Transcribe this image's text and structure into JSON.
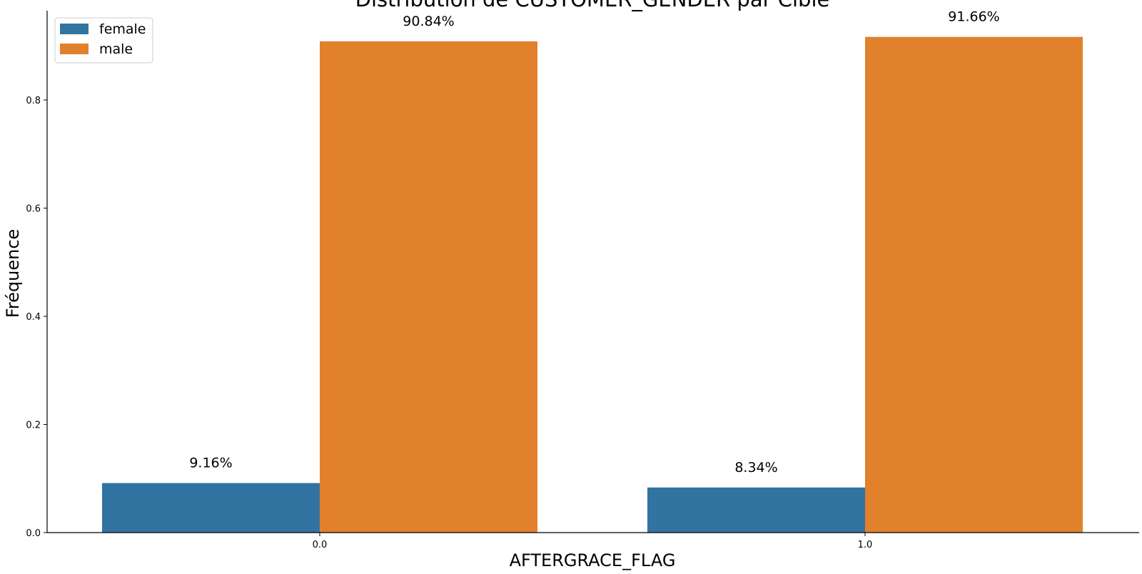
{
  "chart_data": {
    "type": "bar",
    "title": "Distribution de  CUSTOMER_GENDER  par  Cible",
    "xlabel": "AFTERGRACE_FLAG",
    "ylabel": "Fréquence",
    "categories": [
      "0.0",
      "1.0"
    ],
    "series": [
      {
        "name": "female",
        "color": "#3274a1",
        "values": [
          0.0916,
          0.0834
        ],
        "labels": [
          "9.16%",
          "8.34%"
        ]
      },
      {
        "name": "male",
        "color": "#e1812c",
        "values": [
          0.9084,
          0.9166
        ],
        "labels": [
          "90.84%",
          "91.66%"
        ]
      }
    ],
    "ylim": [
      0,
      0.965
    ],
    "yticks": [
      0.0,
      0.2,
      0.4,
      0.6,
      0.8
    ],
    "ytick_labels": [
      "0.0",
      "0.2",
      "0.4",
      "0.6",
      "0.8"
    ],
    "grid": false,
    "legend_position": "top-left"
  }
}
